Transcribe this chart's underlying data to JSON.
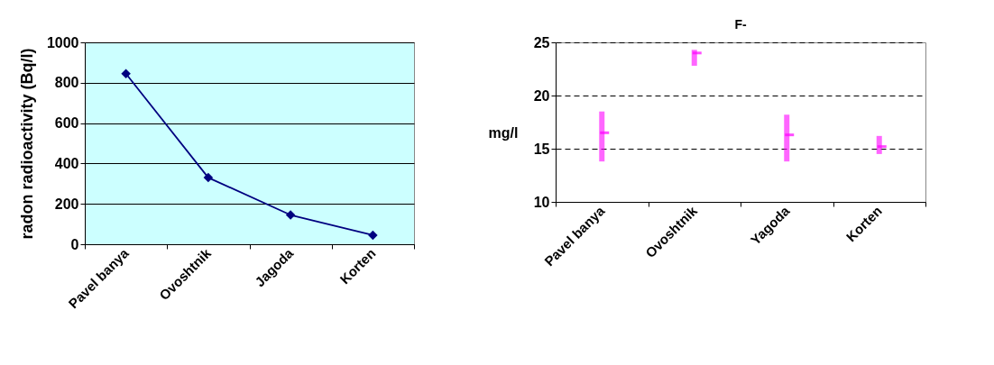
{
  "chart_data": [
    {
      "type": "line",
      "ylabel": "radon  radioactivity (Bq/l)",
      "categories": [
        "Pavel banya",
        "Ovoshtnik",
        "Jagoda",
        "Korten"
      ],
      "series": [
        {
          "color": "#000080",
          "values": [
            845,
            330,
            145,
            45
          ]
        }
      ],
      "ylim": [
        0,
        1000
      ],
      "yticks": [
        0,
        200,
        400,
        600,
        800,
        1000
      ],
      "grid": "y",
      "marker": "diamond",
      "line_style": "solid"
    },
    {
      "type": "bar",
      "title": "F-",
      "ylabel": "mg/l",
      "categories": [
        "Pavel banya",
        "Ovoshtnik",
        "Yagoda",
        "Korten"
      ],
      "series": [
        {
          "type": "bar",
          "color": "#ff00ff",
          "base": [
            13.8,
            22.8,
            13.8,
            14.5
          ],
          "values": [
            4.7,
            1.5,
            4.4,
            1.7
          ]
        },
        {
          "type": "scatter",
          "color": "#ff00ff",
          "values": [
            16.5,
            24.0,
            16.3,
            15.2
          ]
        }
      ],
      "ylim": [
        10,
        25
      ],
      "yticks": [
        10,
        15,
        20,
        25
      ],
      "grid": "y"
    }
  ]
}
